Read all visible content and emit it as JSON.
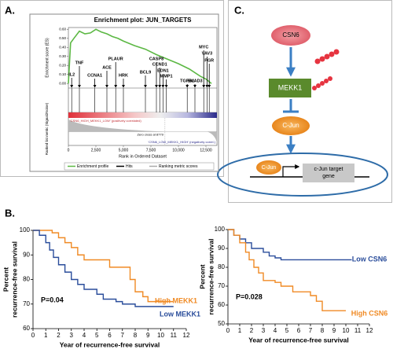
{
  "panels": [
    "A.",
    "B.",
    "C."
  ],
  "chart_data": [
    {
      "type": "gsea",
      "title": "Enrichment plot: JUN_TARGETS",
      "ylabel": "Enrichment score (ES)",
      "metric_label": "Ranked list metric (Signal2Noise)",
      "xlabel": "Rank in Ordered Dataset",
      "x": [
        0,
        200,
        500,
        1000,
        1500,
        2000,
        2500,
        3000,
        3500,
        4000,
        4500,
        5000,
        6000,
        7000,
        8000,
        9000,
        10000,
        11000,
        12000,
        12500,
        13000
      ],
      "series": [
        {
          "name": "Enrichment profile",
          "color": "#5cb844",
          "values": [
            0,
            0.45,
            0.5,
            0.58,
            0.55,
            0.56,
            0.6,
            0.57,
            0.55,
            0.52,
            0.5,
            0.47,
            0.42,
            0.38,
            0.32,
            0.27,
            0.22,
            0.16,
            0.08,
            0.05,
            0
          ]
        }
      ],
      "legend_items": [
        {
          "name": "Hits",
          "color": "#000000"
        },
        {
          "name": "Ranking metric scores",
          "color": "#aaaaaa"
        }
      ],
      "xlim": [
        0,
        13500
      ],
      "xticks": [
        0,
        {
          "value": 2500,
          "label": "2,500"
        },
        {
          "value": 5000,
          "label": "5,000"
        },
        {
          "value": 7500,
          "label": "7,500"
        },
        {
          "value": 10000,
          "label": "10,000"
        },
        {
          "value": 12500,
          "label": "12,500"
        }
      ],
      "ylim": [
        -0.05,
        0.62
      ],
      "yticks": [
        {
          "value": 0,
          "label": "0.00"
        },
        {
          "value": 0.1,
          "label": "0.10"
        },
        {
          "value": 0.2,
          "label": "0.20"
        },
        {
          "value": 0.3,
          "label": "0.30"
        },
        {
          "value": 0.4,
          "label": "0.40"
        },
        {
          "value": 0.5,
          "label": "0.50"
        },
        {
          "value": 0.6,
          "label": "0.60"
        }
      ],
      "annotations": [
        {
          "text": "IL2",
          "x": 300
        },
        {
          "text": "TNF",
          "x": 1000
        },
        {
          "text": "CCNA1",
          "x": 2400
        },
        {
          "text": "ACE",
          "x": 3500
        },
        {
          "text": "PLAUR",
          "x": 4300
        },
        {
          "text": "HRK",
          "x": 5000
        },
        {
          "text": "BCL9",
          "x": 7000
        },
        {
          "text": "CASP8",
          "x": 8000
        },
        {
          "text": "CCND1",
          "x": 8300
        },
        {
          "text": "EDN1",
          "x": 8600
        },
        {
          "text": "MMP1",
          "x": 8900
        },
        {
          "text": "TGFB1",
          "x": 10800
        },
        {
          "text": "SMAD3",
          "x": 11500
        },
        {
          "text": "MYC",
          "x": 12300
        },
        {
          "text": "VAV3",
          "x": 12600
        },
        {
          "text": "PGR",
          "x": 12800
        }
      ],
      "hits": [
        300,
        1000,
        2400,
        3500,
        4300,
        5000,
        7000,
        8000,
        8300,
        8600,
        8900,
        10800,
        11500,
        12300,
        12600,
        12800
      ],
      "pos_label": "'CSN6_HIGH_MEKK1_LOW' (positively correlated)",
      "zero_cross": "Zero cross at 8779",
      "neg_label": "'CSN6_LOW_MEKK1_HIGH' (negatively correl.)"
    },
    {
      "type": "km",
      "ylabel": [
        "Percent",
        "recurrence-free survival"
      ],
      "xlabel": "Year of recurrence-free survival",
      "annotation": "P=0.04",
      "xlim": [
        0,
        12
      ],
      "xticks": [
        0,
        1,
        2,
        3,
        4,
        5,
        6,
        7,
        8,
        9,
        10,
        11,
        12
      ],
      "ylim": [
        60,
        100
      ],
      "yticks": [
        60,
        70,
        80,
        90,
        100
      ],
      "series": [
        {
          "name": "High MEKK1",
          "color": "#f08a24",
          "x": [
            0,
            1.5,
            2,
            2.5,
            3,
            3.5,
            4,
            6,
            7.6,
            8,
            8.6,
            9,
            11
          ],
          "values": [
            100,
            99,
            97,
            95,
            93,
            90,
            88,
            85,
            80,
            75,
            73,
            71,
            71
          ]
        },
        {
          "name": "Low MEKK1",
          "color": "#2a4d9b",
          "x": [
            0,
            0.5,
            1,
            1.3,
            1.6,
            2,
            2.5,
            3,
            3.5,
            4,
            5,
            5.5,
            6.5,
            7,
            8,
            11
          ],
          "values": [
            100,
            98,
            95,
            92,
            89,
            86,
            83,
            80,
            78,
            76,
            74,
            72,
            71,
            70,
            69,
            69
          ]
        }
      ]
    },
    {
      "type": "km",
      "ylabel": [
        "Percent",
        "recurrence-free survival"
      ],
      "xlabel": "Year of recurrence-free survival",
      "annotation": "P=0.028",
      "xlim": [
        0,
        12
      ],
      "xticks": [
        0,
        1,
        2,
        3,
        4,
        5,
        6,
        7,
        8,
        9,
        10,
        11,
        12
      ],
      "ylim": [
        50,
        100
      ],
      "yticks": [
        50,
        60,
        70,
        80,
        90,
        100
      ],
      "series": [
        {
          "name": "Low CSN6",
          "color": "#2a4d9b",
          "x": [
            0,
            0.5,
            1,
            1.5,
            2,
            3,
            3.5,
            4,
            4.5,
            10.5
          ],
          "values": [
            100,
            97,
            95,
            93,
            90,
            88,
            86,
            85,
            84,
            84
          ]
        },
        {
          "name": "High CSN6",
          "color": "#f08a24",
          "x": [
            0,
            0.5,
            1,
            1.5,
            1.8,
            2.2,
            2.6,
            3,
            4,
            4.5,
            5.5,
            7,
            7.5,
            8,
            10
          ],
          "values": [
            100,
            97,
            93,
            88,
            84,
            80,
            77,
            73,
            72,
            70,
            67,
            65,
            62,
            57,
            57
          ]
        }
      ]
    }
  ],
  "diagram": {
    "nodes": [
      {
        "label": "CSN6"
      },
      {
        "label": "MEKK1"
      },
      {
        "label": "C-Jun"
      },
      {
        "label": "C-Jun"
      },
      {
        "label": "c-Jun target gene"
      }
    ]
  }
}
